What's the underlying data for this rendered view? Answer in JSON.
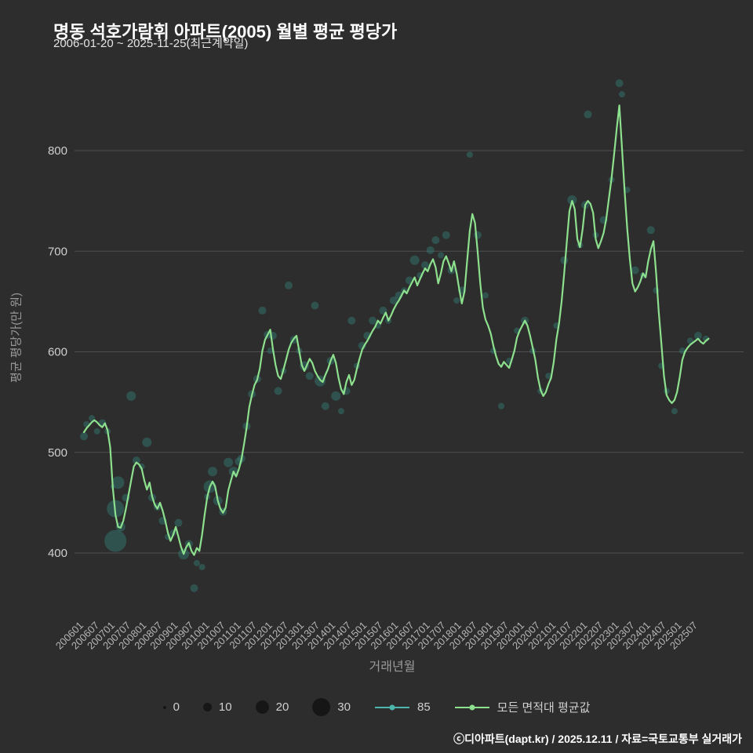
{
  "header": {
    "title": "명동 석호가람휘 아파트(2005) 월별 평균 평당가",
    "subtitle": "2006-01-20 ~ 2025-11-25(최근계약일)"
  },
  "footer_credit": "ⓒ디아파트(dapt.kr) / 2025.12.11 / 자료=국토교통부 실거래가",
  "chart_data": {
    "type": "line",
    "title": "명동 석호가람휘 아파트(2005) 월별 평균 평당가",
    "xlabel": "거래년월",
    "ylabel": "평균 평당가(만 원)",
    "ylim": [
      350,
      880
    ],
    "yticks": [
      400,
      500,
      600,
      700,
      800
    ],
    "grid": "horizontal",
    "legend_position": "bottom",
    "start_month": "2006-01",
    "end_month": "2025-11",
    "xtick_labels": [
      "200601",
      "200607",
      "200701",
      "200707",
      "200801",
      "200807",
      "200901",
      "200907",
      "201001",
      "201007",
      "201101",
      "201107",
      "201201",
      "201207",
      "201301",
      "201307",
      "201401",
      "201407",
      "201501",
      "201507",
      "201601",
      "201607",
      "201701",
      "201707",
      "201801",
      "201807",
      "201901",
      "201907",
      "202001",
      "202007",
      "202101",
      "202107",
      "202201",
      "202207",
      "202301",
      "202307",
      "202401",
      "202407",
      "202501",
      "202507"
    ],
    "series": [
      {
        "name": "모든 면적대 평균값",
        "color": "#8de08d",
        "values": [
          520,
          524,
          527,
          530,
          532,
          530,
          527,
          525,
          529,
          522,
          505,
          465,
          438,
          426,
          425,
          432,
          444,
          458,
          472,
          486,
          490,
          488,
          484,
          472,
          463,
          470,
          456,
          448,
          444,
          450,
          442,
          432,
          420,
          412,
          418,
          426,
          416,
          406,
          399,
          406,
          410,
          402,
          398,
          405,
          402,
          418,
          438,
          456,
          466,
          471,
          466,
          452,
          444,
          440,
          445,
          462,
          472,
          481,
          476,
          483,
          493,
          508,
          525,
          545,
          557,
          567,
          572,
          583,
          601,
          612,
          617,
          622,
          603,
          587,
          576,
          573,
          582,
          592,
          602,
          609,
          613,
          616,
          601,
          587,
          581,
          587,
          593,
          589,
          581,
          576,
          572,
          570,
          577,
          583,
          591,
          597,
          589,
          574,
          563,
          558,
          570,
          577,
          567,
          572,
          583,
          593,
          602,
          607,
          611,
          616,
          621,
          625,
          631,
          628,
          634,
          639,
          631,
          636,
          642,
          647,
          651,
          656,
          661,
          658,
          664,
          669,
          674,
          666,
          672,
          678,
          683,
          680,
          687,
          692,
          684,
          668,
          678,
          690,
          695,
          688,
          680,
          690,
          678,
          662,
          648,
          660,
          690,
          720,
          737,
          728,
          700,
          668,
          644,
          632,
          626,
          618,
          606,
          596,
          588,
          585,
          590,
          587,
          584,
          592,
          601,
          614,
          621,
          626,
          631,
          626,
          616,
          604,
          592,
          574,
          562,
          556,
          560,
          568,
          574,
          590,
          612,
          628,
          650,
          678,
          710,
          740,
          750,
          742,
          712,
          704,
          722,
          746,
          750,
          747,
          738,
          712,
          703,
          710,
          718,
          732,
          752,
          772,
          796,
          822,
          845,
          802,
          760,
          722,
          692,
          668,
          660,
          664,
          670,
          678,
          674,
          690,
          702,
          710,
          678,
          640,
          608,
          576,
          557,
          552,
          549,
          552,
          560,
          575,
          592,
          600,
          604,
          607,
          609,
          611,
          613,
          610,
          608,
          611,
          613
        ]
      }
    ],
    "scatter": {
      "name": "85",
      "color": "#35857b",
      "point_format": [
        "ym",
        "value",
        "radius_px"
      ],
      "points": [
        [
          "2006-01",
          516,
          5
        ],
        [
          "2006-02",
          528,
          4
        ],
        [
          "2006-04",
          534,
          4
        ],
        [
          "2006-06",
          521,
          4
        ],
        [
          "2006-08",
          529,
          5
        ],
        [
          "2006-10",
          521,
          4
        ],
        [
          "2006-12",
          466,
          3
        ],
        [
          "2007-01",
          412,
          14
        ],
        [
          "2007-01",
          444,
          11
        ],
        [
          "2007-02",
          470,
          8
        ],
        [
          "2007-03",
          426,
          6
        ],
        [
          "2007-05",
          455,
          5
        ],
        [
          "2007-07",
          556,
          6
        ],
        [
          "2007-09",
          492,
          5
        ],
        [
          "2007-11",
          486,
          4
        ],
        [
          "2008-01",
          510,
          6
        ],
        [
          "2008-03",
          455,
          5
        ],
        [
          "2008-05",
          446,
          5
        ],
        [
          "2008-07",
          432,
          5
        ],
        [
          "2008-09",
          416,
          4
        ],
        [
          "2008-11",
          420,
          4
        ],
        [
          "2009-01",
          430,
          5
        ],
        [
          "2009-03",
          399,
          7
        ],
        [
          "2009-05",
          409,
          5
        ],
        [
          "2009-07",
          365,
          5
        ],
        [
          "2009-08",
          390,
          4
        ],
        [
          "2009-10",
          386,
          4
        ],
        [
          "2009-12",
          456,
          4
        ],
        [
          "2010-01",
          466,
          8
        ],
        [
          "2010-02",
          481,
          6
        ],
        [
          "2010-04",
          452,
          6
        ],
        [
          "2010-06",
          441,
          5
        ],
        [
          "2010-08",
          490,
          6
        ],
        [
          "2010-10",
          481,
          6
        ],
        [
          "2010-12",
          491,
          5
        ],
        [
          "2011-01",
          494,
          5
        ],
        [
          "2011-03",
          526,
          5
        ],
        [
          "2011-05",
          558,
          5
        ],
        [
          "2011-07",
          573,
          5
        ],
        [
          "2011-09",
          641,
          5
        ],
        [
          "2011-11",
          617,
          5
        ],
        [
          "2011-12",
          601,
          4
        ],
        [
          "2012-01",
          616,
          5
        ],
        [
          "2012-03",
          561,
          5
        ],
        [
          "2012-05",
          581,
          4
        ],
        [
          "2012-07",
          666,
          5
        ],
        [
          "2012-09",
          612,
          5
        ],
        [
          "2012-11",
          601,
          4
        ],
        [
          "2013-01",
          586,
          6
        ],
        [
          "2013-03",
          576,
          5
        ],
        [
          "2013-05",
          646,
          5
        ],
        [
          "2013-07",
          571,
          7
        ],
        [
          "2013-09",
          546,
          5
        ],
        [
          "2013-11",
          591,
          5
        ],
        [
          "2014-01",
          556,
          6
        ],
        [
          "2014-03",
          541,
          4
        ],
        [
          "2014-05",
          561,
          5
        ],
        [
          "2014-07",
          631,
          5
        ],
        [
          "2014-09",
          586,
          4
        ],
        [
          "2014-11",
          606,
          5
        ],
        [
          "2015-01",
          616,
          5
        ],
        [
          "2015-03",
          631,
          5
        ],
        [
          "2015-05",
          626,
          4
        ],
        [
          "2015-07",
          641,
          5
        ],
        [
          "2015-09",
          631,
          4
        ],
        [
          "2015-11",
          651,
          5
        ],
        [
          "2016-01",
          656,
          5
        ],
        [
          "2016-03",
          661,
          4
        ],
        [
          "2016-05",
          671,
          5
        ],
        [
          "2016-07",
          691,
          6
        ],
        [
          "2016-09",
          676,
          4
        ],
        [
          "2016-11",
          686,
          5
        ],
        [
          "2017-01",
          701,
          5
        ],
        [
          "2017-03",
          711,
          5
        ],
        [
          "2017-05",
          696,
          4
        ],
        [
          "2017-07",
          716,
          5
        ],
        [
          "2017-09",
          681,
          5
        ],
        [
          "2017-11",
          651,
          4
        ],
        [
          "2018-01",
          661,
          5
        ],
        [
          "2018-04",
          796,
          4
        ],
        [
          "2018-07",
          716,
          5
        ],
        [
          "2018-10",
          656,
          4
        ],
        [
          "2019-01",
          601,
          4
        ],
        [
          "2019-04",
          546,
          4
        ],
        [
          "2019-07",
          591,
          4
        ],
        [
          "2019-10",
          621,
          4
        ],
        [
          "2020-01",
          631,
          5
        ],
        [
          "2020-04",
          601,
          4
        ],
        [
          "2020-07",
          561,
          4
        ],
        [
          "2020-10",
          576,
          4
        ],
        [
          "2021-01",
          626,
          4
        ],
        [
          "2021-04",
          691,
          5
        ],
        [
          "2021-07",
          751,
          6
        ],
        [
          "2021-10",
          706,
          4
        ],
        [
          "2021-12",
          746,
          5
        ],
        [
          "2022-01",
          836,
          5
        ],
        [
          "2022-04",
          716,
          4
        ],
        [
          "2022-07",
          731,
          5
        ],
        [
          "2022-10",
          771,
          4
        ],
        [
          "2023-01",
          867,
          5
        ],
        [
          "2023-02",
          856,
          4
        ],
        [
          "2023-04",
          761,
          4
        ],
        [
          "2023-07",
          681,
          5
        ],
        [
          "2023-10",
          676,
          4
        ],
        [
          "2024-01",
          721,
          5
        ],
        [
          "2024-03",
          661,
          4
        ],
        [
          "2024-05",
          586,
          4
        ],
        [
          "2024-07",
          561,
          4
        ],
        [
          "2024-10",
          541,
          4
        ],
        [
          "2025-01",
          601,
          4
        ],
        [
          "2025-04",
          611,
          4
        ],
        [
          "2025-07",
          616,
          5
        ],
        [
          "2025-10",
          613,
          4
        ]
      ]
    },
    "legend": {
      "bubble_sizes": [
        0,
        10,
        20,
        30
      ],
      "scatter_label": "85",
      "line_label": "모든 면적대 평균값"
    }
  }
}
